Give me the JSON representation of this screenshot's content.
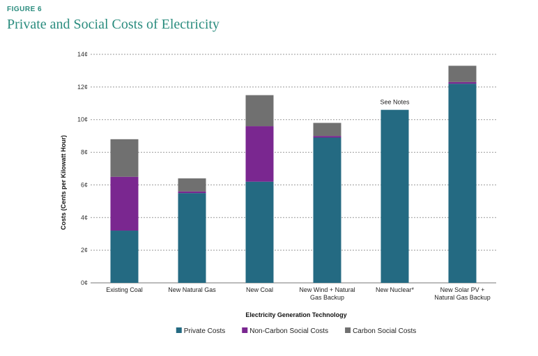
{
  "figure_label": "FIGURE 6",
  "chart_data": {
    "type": "bar",
    "stacked": true,
    "title": "Private and Social Costs of Electricity",
    "xlabel": "Electricity Generation Technology",
    "ylabel": "Costs (Cents per Kilowatt Hour)",
    "ylim": [
      0,
      14
    ],
    "yticks": [
      0,
      2,
      4,
      6,
      8,
      10,
      12,
      14
    ],
    "ytick_labels": [
      "0¢",
      "2¢",
      "4¢",
      "6¢",
      "8¢",
      "10¢",
      "12¢",
      "14¢"
    ],
    "grid": true,
    "legend_position": "bottom",
    "categories": [
      [
        "Existing Coal"
      ],
      [
        "New Natural Gas"
      ],
      [
        "New Coal"
      ],
      [
        "New Wind + Natural",
        "Gas Backup"
      ],
      [
        "New Nuclear*"
      ],
      [
        "New Solar PV +",
        "Natural Gas Backup"
      ]
    ],
    "series": [
      {
        "name": "Private Costs",
        "color": "#246a82",
        "values": [
          3.2,
          5.5,
          6.2,
          8.9,
          10.6,
          12.2
        ]
      },
      {
        "name": "Non-Carbon Social Costs",
        "color": "#7a2790",
        "values": [
          3.3,
          0.1,
          3.4,
          0.1,
          0,
          0.1
        ]
      },
      {
        "name": "Carbon Social Costs",
        "color": "#707070",
        "values": [
          2.3,
          0.8,
          1.9,
          0.8,
          0,
          1.0
        ]
      }
    ],
    "annotations": [
      {
        "category_index": 4,
        "text": "See Notes"
      }
    ]
  }
}
